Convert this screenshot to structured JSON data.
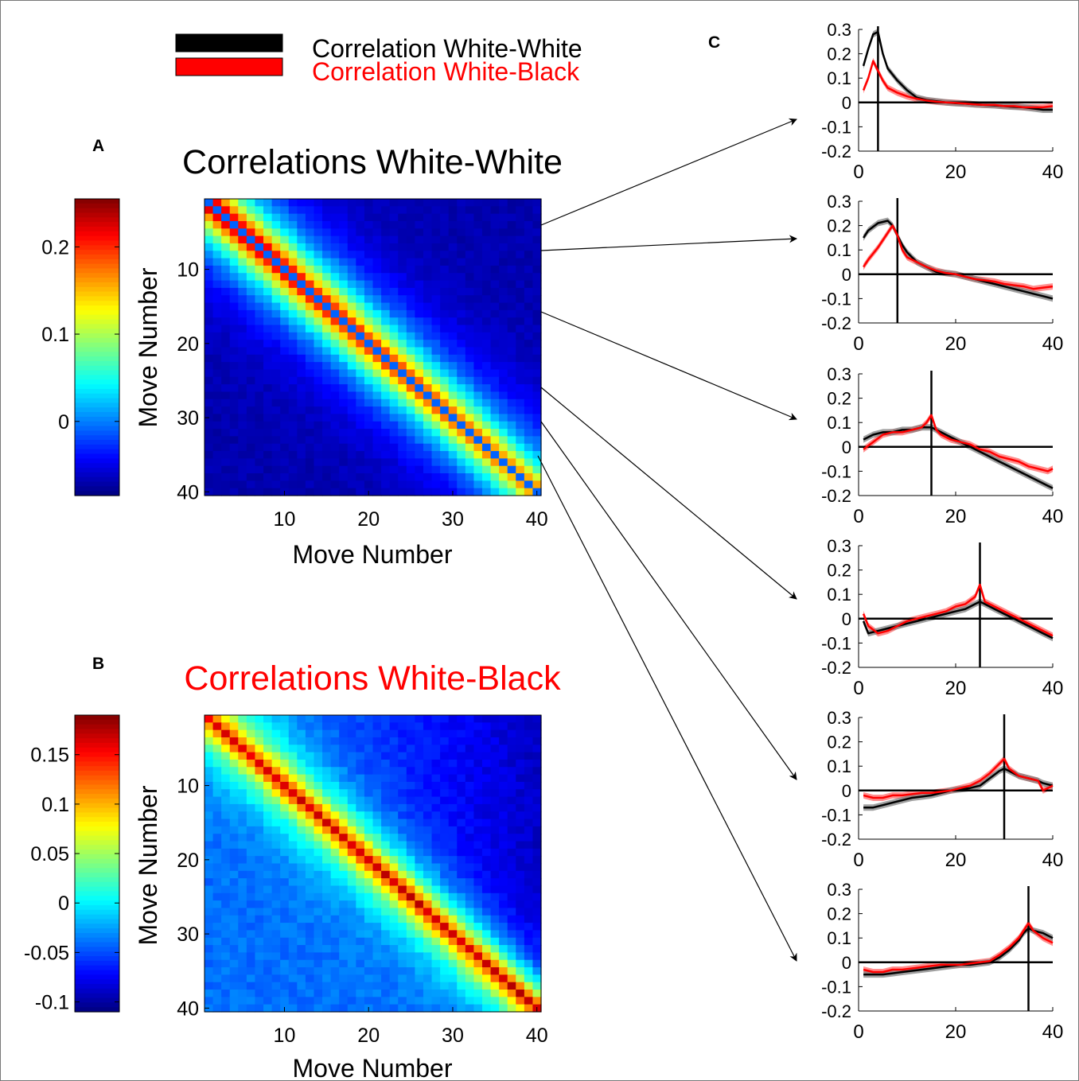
{
  "legend": {
    "ww_label": "Correlation White-White",
    "wb_label": "Correlation White-Black",
    "ww_color": "#000000",
    "wb_color": "#ff0000"
  },
  "panel_labels": {
    "a": "A",
    "b": "B",
    "c": "C"
  },
  "colors": {
    "white_white": "#000000",
    "white_black": "#ff0000",
    "axis": "#000000"
  },
  "chart_data": [
    {
      "type": "heatmap",
      "panel": "A",
      "title": "Correlations White-White",
      "title_color": "#000000",
      "xlabel": "Move Number",
      "ylabel": "Move Number",
      "xticks": [
        10,
        20,
        30,
        40
      ],
      "yticks": [
        10,
        20,
        30,
        40
      ],
      "size": 40,
      "colorbar": {
        "min": -0.085,
        "max": 0.255,
        "ticks": [
          0,
          0.1,
          0.2
        ],
        "tick_labels": [
          "0",
          "0.1",
          "0.2"
        ]
      },
      "model": {
        "peak": 0.22,
        "late_peak": 0.15,
        "far": -0.07,
        "diagonal": -0.01,
        "decay": 4.5
      }
    },
    {
      "type": "heatmap",
      "panel": "B",
      "title": "Correlations White-Black",
      "title_color": "#ff0000",
      "xlabel": "Move Number",
      "ylabel": "Move Number",
      "xticks": [
        10,
        20,
        30,
        40
      ],
      "yticks": [
        10,
        20,
        30,
        40
      ],
      "size": 40,
      "colorbar": {
        "min": -0.11,
        "max": 0.19,
        "ticks": [
          -0.1,
          -0.05,
          0,
          0.05,
          0.1,
          0.15
        ],
        "tick_labels": [
          "-0.1",
          "-0.05",
          "0",
          "0.05",
          "0.1",
          "0.15"
        ]
      },
      "model": {
        "peak": 0.16,
        "late_peak": 0.17,
        "far": -0.09,
        "decay": 3.5
      }
    },
    {
      "type": "line",
      "panel": "C",
      "plots": [
        {
          "move": 4,
          "xlim": [
            0,
            40
          ],
          "ylim": [
            -0.2,
            0.3
          ],
          "xticks": [
            0,
            20,
            40
          ],
          "yticks": [
            -0.2,
            -0.1,
            0,
            0.1,
            0.2,
            0.3
          ],
          "ytick_labels": [
            "-0.2",
            "-0.1",
            "0",
            "0.1",
            "0.2",
            "0.3"
          ],
          "series": [
            {
              "color": "#000000",
              "x": [
                1,
                2,
                3,
                4,
                5,
                6,
                8,
                10,
                12,
                14,
                16,
                18,
                20,
                22,
                24,
                26,
                28,
                30,
                32,
                34,
                36,
                38,
                40
              ],
              "y": [
                0.15,
                0.22,
                0.28,
                0.29,
                0.2,
                0.14,
                0.09,
                0.05,
                0.02,
                0.01,
                0.005,
                0.0,
                -0.003,
                -0.005,
                -0.008,
                -0.01,
                -0.012,
                -0.015,
                -0.018,
                -0.02,
                -0.025,
                -0.03,
                -0.03
              ]
            },
            {
              "color": "#ff0000",
              "x": [
                1,
                2,
                3,
                4,
                5,
                6,
                8,
                10,
                12,
                14,
                16,
                18,
                20,
                22,
                24,
                26,
                28,
                30,
                32,
                34,
                36,
                38,
                40
              ],
              "y": [
                0.05,
                0.1,
                0.17,
                0.13,
                0.09,
                0.06,
                0.04,
                0.025,
                0.015,
                0.008,
                0.003,
                0.0,
                -0.002,
                -0.005,
                -0.008,
                -0.01,
                -0.01,
                -0.015,
                -0.015,
                -0.02,
                -0.02,
                -0.02,
                -0.015
              ]
            }
          ]
        },
        {
          "move": 8,
          "xlim": [
            0,
            40
          ],
          "ylim": [
            -0.2,
            0.3
          ],
          "xticks": [
            0,
            20,
            40
          ],
          "yticks": [
            -0.2,
            -0.1,
            0,
            0.1,
            0.2,
            0.3
          ],
          "ytick_labels": [
            "-0.2",
            "-0.1",
            "0",
            "0.1",
            "0.2",
            "0.3"
          ],
          "series": [
            {
              "color": "#000000",
              "x": [
                1,
                2,
                4,
                6,
                7,
                8,
                9,
                10,
                12,
                14,
                16,
                18,
                20,
                22,
                24,
                26,
                28,
                30,
                32,
                34,
                36,
                38,
                40
              ],
              "y": [
                0.15,
                0.18,
                0.21,
                0.22,
                0.2,
                0.16,
                0.12,
                0.09,
                0.05,
                0.03,
                0.01,
                0.005,
                0.0,
                -0.01,
                -0.02,
                -0.03,
                -0.04,
                -0.05,
                -0.06,
                -0.07,
                -0.08,
                -0.09,
                -0.1
              ]
            },
            {
              "color": "#ff0000",
              "x": [
                1,
                2,
                4,
                6,
                7,
                8,
                9,
                10,
                12,
                14,
                16,
                18,
                20,
                22,
                24,
                26,
                28,
                30,
                32,
                34,
                36,
                38,
                40
              ],
              "y": [
                0.03,
                0.06,
                0.11,
                0.17,
                0.2,
                0.16,
                0.1,
                0.07,
                0.05,
                0.03,
                0.015,
                0.005,
                0.0,
                -0.01,
                -0.02,
                -0.025,
                -0.03,
                -0.04,
                -0.045,
                -0.05,
                -0.06,
                -0.055,
                -0.05
              ]
            }
          ]
        },
        {
          "move": 15,
          "xlim": [
            0,
            40
          ],
          "ylim": [
            -0.2,
            0.3
          ],
          "xticks": [
            0,
            20,
            40
          ],
          "yticks": [
            -0.2,
            -0.1,
            0,
            0.1,
            0.2,
            0.3
          ],
          "ytick_labels": [
            "-0.2",
            "-0.1",
            "0",
            "0.1",
            "0.2",
            "0.3"
          ],
          "series": [
            {
              "color": "#000000",
              "x": [
                1,
                3,
                5,
                7,
                9,
                11,
                13,
                14,
                15,
                16,
                17,
                19,
                21,
                23,
                25,
                27,
                29,
                31,
                33,
                35,
                37,
                39,
                40
              ],
              "y": [
                0.03,
                0.05,
                0.06,
                0.06,
                0.07,
                0.07,
                0.08,
                0.08,
                0.08,
                0.07,
                0.06,
                0.04,
                0.02,
                0.0,
                -0.02,
                -0.04,
                -0.06,
                -0.08,
                -0.1,
                -0.12,
                -0.14,
                -0.16,
                -0.17
              ]
            },
            {
              "color": "#ff0000",
              "x": [
                1,
                3,
                5,
                7,
                9,
                11,
                13,
                14,
                15,
                16,
                17,
                19,
                21,
                23,
                25,
                27,
                29,
                31,
                33,
                35,
                37,
                39,
                40
              ],
              "y": [
                -0.01,
                0.02,
                0.05,
                0.06,
                0.06,
                0.07,
                0.08,
                0.1,
                0.13,
                0.07,
                0.05,
                0.03,
                0.02,
                0.01,
                -0.01,
                -0.02,
                -0.04,
                -0.05,
                -0.06,
                -0.08,
                -0.09,
                -0.1,
                -0.09
              ]
            }
          ]
        },
        {
          "move": 25,
          "xlim": [
            0,
            40
          ],
          "ylim": [
            -0.2,
            0.3
          ],
          "xticks": [
            0,
            20,
            40
          ],
          "yticks": [
            -0.2,
            -0.1,
            0,
            0.1,
            0.2,
            0.3
          ],
          "ytick_labels": [
            "-0.2",
            "-0.1",
            "0",
            "0.1",
            "0.2",
            "0.3"
          ],
          "series": [
            {
              "color": "#000000",
              "x": [
                1,
                2,
                4,
                6,
                8,
                10,
                12,
                14,
                16,
                18,
                20,
                22,
                24,
                25,
                26,
                28,
                30,
                32,
                34,
                36,
                38,
                40
              ],
              "y": [
                -0.01,
                -0.06,
                -0.05,
                -0.04,
                -0.03,
                -0.02,
                -0.01,
                0.0,
                0.01,
                0.02,
                0.03,
                0.04,
                0.06,
                0.07,
                0.06,
                0.04,
                0.02,
                0.0,
                -0.02,
                -0.04,
                -0.06,
                -0.08
              ]
            },
            {
              "color": "#ff0000",
              "x": [
                1,
                2,
                4,
                6,
                8,
                10,
                12,
                14,
                16,
                18,
                20,
                22,
                24,
                25,
                26,
                28,
                30,
                32,
                34,
                36,
                38,
                40
              ],
              "y": [
                0.02,
                -0.03,
                -0.06,
                -0.05,
                -0.03,
                -0.01,
                0.0,
                0.01,
                0.02,
                0.03,
                0.05,
                0.06,
                0.09,
                0.14,
                0.07,
                0.05,
                0.03,
                0.01,
                -0.01,
                -0.03,
                -0.05,
                -0.07
              ]
            }
          ]
        },
        {
          "move": 30,
          "xlim": [
            0,
            40
          ],
          "ylim": [
            -0.2,
            0.3
          ],
          "xticks": [
            0,
            20,
            40
          ],
          "yticks": [
            -0.2,
            -0.1,
            0,
            0.1,
            0.2,
            0.3
          ],
          "ytick_labels": [
            "-0.2",
            "-0.1",
            "0",
            "0.1",
            "0.2",
            "0.3"
          ],
          "series": [
            {
              "color": "#000000",
              "x": [
                1,
                3,
                5,
                7,
                9,
                11,
                13,
                15,
                17,
                19,
                21,
                23,
                25,
                27,
                29,
                30,
                31,
                33,
                35,
                37,
                38,
                40
              ],
              "y": [
                -0.07,
                -0.07,
                -0.06,
                -0.05,
                -0.04,
                -0.03,
                -0.025,
                -0.02,
                -0.01,
                0.0,
                0.005,
                0.01,
                0.02,
                0.05,
                0.08,
                0.09,
                0.08,
                0.06,
                0.05,
                0.04,
                0.03,
                0.02
              ]
            },
            {
              "color": "#ff0000",
              "x": [
                1,
                3,
                5,
                7,
                9,
                11,
                13,
                15,
                17,
                19,
                21,
                23,
                25,
                27,
                29,
                30,
                31,
                33,
                35,
                37,
                38,
                40
              ],
              "y": [
                -0.02,
                -0.03,
                -0.03,
                -0.02,
                -0.02,
                -0.015,
                -0.01,
                -0.01,
                -0.005,
                0.0,
                0.01,
                0.02,
                0.04,
                0.07,
                0.11,
                0.13,
                0.09,
                0.06,
                0.05,
                0.04,
                0.0,
                0.02
              ]
            }
          ]
        },
        {
          "move": 35,
          "xlim": [
            0,
            40
          ],
          "ylim": [
            -0.2,
            0.3
          ],
          "xticks": [
            0,
            20,
            40
          ],
          "yticks": [
            -0.2,
            -0.1,
            0,
            0.1,
            0.2,
            0.3
          ],
          "ytick_labels": [
            "-0.2",
            "-0.1",
            "0",
            "0.1",
            "0.2",
            "0.3"
          ],
          "series": [
            {
              "color": "#000000",
              "x": [
                1,
                3,
                5,
                7,
                9,
                11,
                13,
                15,
                17,
                19,
                21,
                23,
                25,
                27,
                29,
                31,
                33,
                34,
                35,
                36,
                38,
                40
              ],
              "y": [
                -0.05,
                -0.05,
                -0.05,
                -0.045,
                -0.04,
                -0.035,
                -0.03,
                -0.025,
                -0.02,
                -0.015,
                -0.01,
                -0.01,
                -0.005,
                0.0,
                0.02,
                0.05,
                0.09,
                0.12,
                0.14,
                0.13,
                0.12,
                0.1
              ]
            },
            {
              "color": "#ff0000",
              "x": [
                1,
                3,
                5,
                7,
                9,
                11,
                13,
                15,
                17,
                19,
                21,
                23,
                25,
                27,
                29,
                31,
                33,
                34,
                35,
                36,
                38,
                40
              ],
              "y": [
                -0.03,
                -0.04,
                -0.04,
                -0.03,
                -0.03,
                -0.025,
                -0.02,
                -0.015,
                -0.01,
                -0.01,
                -0.01,
                -0.005,
                0.0,
                0.005,
                0.03,
                0.06,
                0.1,
                0.13,
                0.16,
                0.13,
                0.1,
                0.08
              ]
            }
          ]
        }
      ]
    }
  ]
}
